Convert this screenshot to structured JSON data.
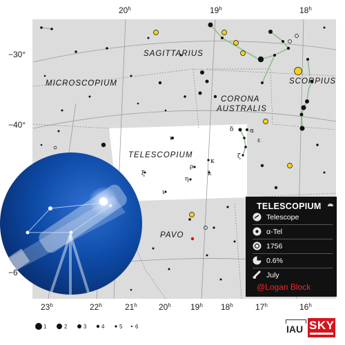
{
  "map": {
    "ra_labels": [
      {
        "h": "20",
        "s": "h"
      },
      {
        "h": "19",
        "s": "h"
      },
      {
        "h": "18",
        "s": "h"
      },
      {
        "h": "23",
        "s": "h"
      },
      {
        "h": "22",
        "s": "h"
      },
      {
        "h": "21",
        "s": "h"
      },
      {
        "h": "20",
        "s": "h"
      },
      {
        "h": "19",
        "s": "h"
      },
      {
        "h": "18",
        "s": "h"
      },
      {
        "h": "17",
        "s": "h"
      },
      {
        "h": "16",
        "s": "h"
      }
    ],
    "dec_labels": [
      "−30°",
      "−40°",
      "−6"
    ],
    "constellations": [
      "SAGITTARIUS",
      "MICROSCOPIUM",
      "SCORPIUS",
      "CORONA",
      "AUSTRALIS",
      "TELESCOPIUM",
      "PAVO"
    ],
    "greek_letters": [
      "δ",
      "α",
      "ε",
      "ζ",
      "ι",
      "κ",
      "ρ",
      "λ",
      "ξ",
      "η",
      "ν"
    ],
    "magnitude_scale": [
      "1",
      "2",
      "3",
      "4",
      "5",
      "6"
    ],
    "icon": "telescope-icon"
  },
  "infobox": {
    "title": "TELESCOPIUM",
    "rows": [
      {
        "icon": "constellation-icon",
        "text": "Telescope"
      },
      {
        "icon": "brightest-star-icon",
        "text": "α-Tel"
      },
      {
        "icon": "star-icon",
        "text": "1756"
      },
      {
        "icon": "area-icon",
        "text": "0.6%"
      },
      {
        "icon": "calendar-icon",
        "text": "July"
      }
    ],
    "credit": "@Logan Block"
  },
  "logos": {
    "iau": "IAU",
    "sky": "SKY"
  },
  "colors": {
    "map_bg": "#dcdcdc",
    "highlight": "#ffffff",
    "figure_line": "#8fbf8f",
    "infobox_bg": "#111111",
    "credit": "#ff2222",
    "globe": "#0b3d8c"
  }
}
